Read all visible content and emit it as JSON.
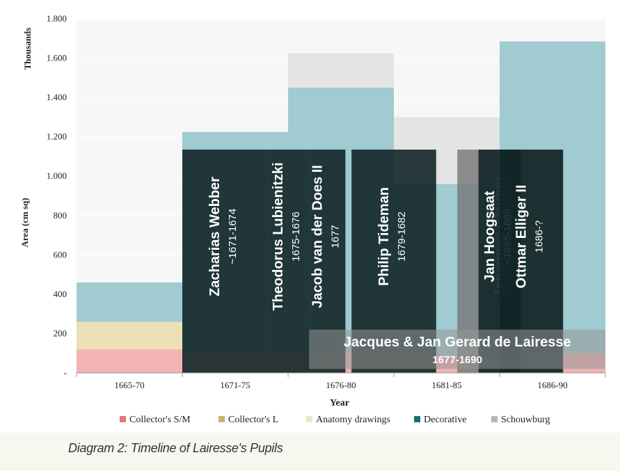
{
  "chart_data": {
    "type": "area",
    "y_unit_label": "Thousands",
    "ylabel": "Area (cm sq)",
    "xlabel": "Year",
    "categories": [
      "1665-70",
      "1671-75",
      "1676-80",
      "1681-85",
      "1686-90"
    ],
    "ylim": [
      0,
      1800
    ],
    "y_ticks": [
      "-",
      "200",
      "400",
      "600",
      "800",
      "1.000",
      "1.200",
      "1.400",
      "1.600",
      "1.800"
    ],
    "y_tick_values": [
      0,
      200,
      400,
      600,
      800,
      1000,
      1200,
      1400,
      1600,
      1800
    ],
    "series": [
      {
        "name": "Collector's S/M",
        "color": "#f2b3b3",
        "values": [
          120,
          110,
          100,
          90,
          100
        ]
      },
      {
        "name": "Collector's L",
        "color": "#ece0b6",
        "values": [
          140,
          0,
          0,
          0,
          0
        ]
      },
      {
        "name": "Anatomy drawings",
        "color": "#f3ebd0",
        "values": [
          0,
          0,
          0,
          0,
          0
        ]
      },
      {
        "name": "Decorative",
        "color": "#9fcbd1",
        "values": [
          200,
          1115,
          1350,
          870,
          1585
        ]
      },
      {
        "name": "Schouwburg",
        "color": "#e4e4e4",
        "values": [
          0,
          0,
          175,
          340,
          0
        ]
      }
    ],
    "legend_colors": [
      "#e0787c",
      "#c8b368",
      "#f0e6c4",
      "#1b6e78",
      "#b5b5b5"
    ],
    "legend_position": "bottom",
    "overlays": [
      {
        "name": "Zacharias Webber",
        "years": "~1671-1674",
        "start": 1671,
        "end": 1674
      },
      {
        "name": "Theodorus Lubienitzki",
        "years": "1675-1676",
        "start": 1675,
        "end": 1676
      },
      {
        "name": "Jacob van der Does II",
        "years": "1677",
        "start": 1677,
        "end": 1677
      },
      {
        "name": "Philip Tideman",
        "years": "1679-1682",
        "start": 1679,
        "end": 1682
      },
      {
        "name": "Johannes Glauber",
        "years": "1684-1688",
        "start": 1684,
        "end": 1688
      },
      {
        "name": "Jan Hoogsaat",
        "years": "~1685-1686",
        "start": 1685,
        "end": 1686
      },
      {
        "name": "Ottmar Elliger II",
        "years": "1686-?",
        "start": 1686,
        "end": null
      }
    ],
    "banner": {
      "name": "Jacques & Jan Gerard de Lairesse",
      "years": "1677-1690"
    }
  },
  "caption": "Diagram 2: Timeline of Lairesse's Pupils"
}
